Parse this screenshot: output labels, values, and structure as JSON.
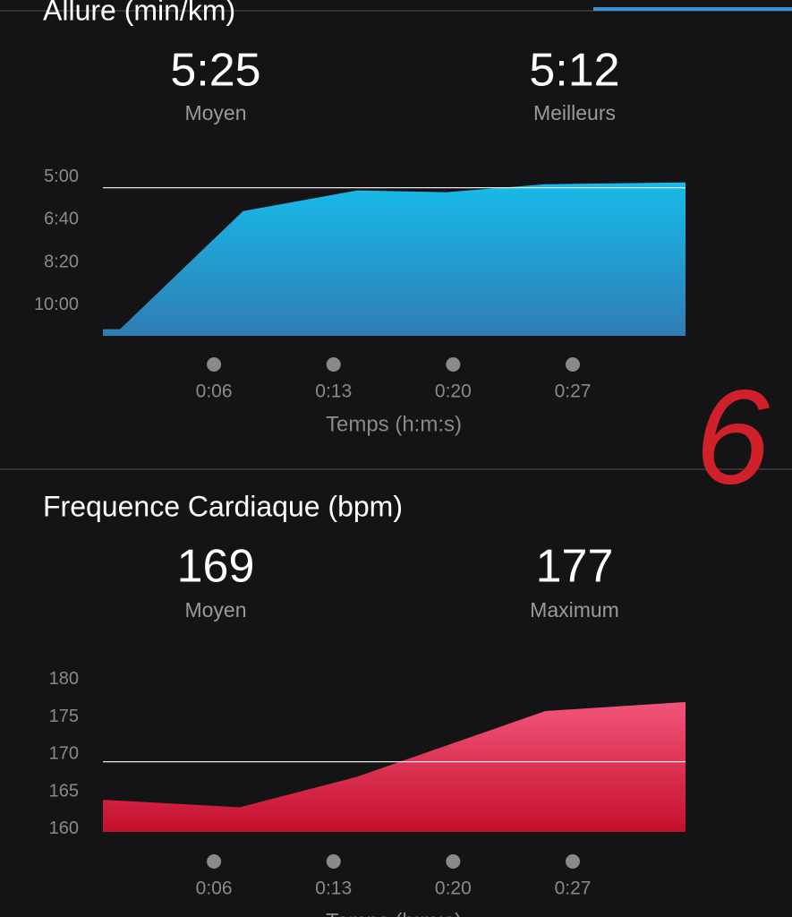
{
  "chart_data": [
    {
      "type": "area",
      "title": "Allure (min/km)",
      "summary": [
        {
          "value": "5:25",
          "label": "Moyen"
        },
        {
          "value": "5:12",
          "label": "Meilleurs"
        }
      ],
      "average_line": 5.4167,
      "x": [
        -0.5,
        0.5,
        7.7,
        14.4,
        19.6,
        25.4,
        33.6
      ],
      "values": [
        10.94,
        10.94,
        6.33,
        5.52,
        5.59,
        5.28,
        5.21
      ],
      "xlim": [
        -0.5,
        33.6
      ],
      "xticks": [
        {
          "value": 6,
          "label": "0:06"
        },
        {
          "value": 13,
          "label": "0:13"
        },
        {
          "value": 20,
          "label": "0:20"
        },
        {
          "value": 27,
          "label": "0:27"
        }
      ],
      "ylim": [
        11.2,
        4.8
      ],
      "yticks": [
        {
          "value": 5,
          "label": "5:00"
        },
        {
          "value": 6.6667,
          "label": "6:40"
        },
        {
          "value": 8.3333,
          "label": "8:20"
        },
        {
          "value": 10,
          "label": "10:00"
        }
      ],
      "x_label": "Temps (h:m:s)",
      "color": [
        "#17bbea",
        "#2f7db4"
      ]
    },
    {
      "type": "area",
      "title": "Frequence Cardiaque (bpm)",
      "summary": [
        {
          "value": "169",
          "label": "Moyen"
        },
        {
          "value": "177",
          "label": "Maximum"
        }
      ],
      "average_line": 169,
      "x": [
        -0.5,
        7.5,
        14.4,
        25.4,
        33.6
      ],
      "values": [
        163.9,
        162.9,
        167,
        175.8,
        177
      ],
      "xlim": [
        -0.5,
        33.6
      ],
      "xticks": [
        {
          "value": 6,
          "label": "0:06"
        },
        {
          "value": 13,
          "label": "0:13"
        },
        {
          "value": 20,
          "label": "0:20"
        },
        {
          "value": 27,
          "label": "0:27"
        }
      ],
      "ylim": [
        159.6,
        181
      ],
      "yticks": [
        160,
        165,
        170,
        175,
        180
      ],
      "x_label": "Temps (h:m:s)",
      "color": [
        "#f2557a",
        "#c4102c"
      ]
    }
  ],
  "annotation": "6"
}
